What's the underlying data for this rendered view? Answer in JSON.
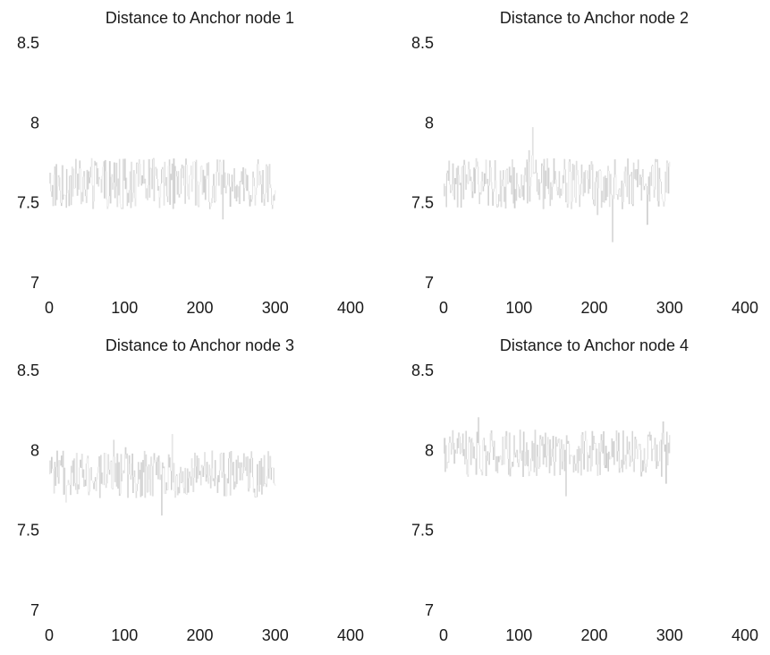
{
  "chart_data": [
    {
      "type": "line",
      "title": "Distance to Anchor node 1",
      "xlabel": "",
      "ylabel": "",
      "xlim": [
        0,
        400
      ],
      "ylim": [
        7,
        8.5
      ],
      "xticks": [
        "0",
        "100",
        "200",
        "300",
        "400"
      ],
      "yticks": [
        "7",
        "7.5",
        "8",
        "8.5"
      ],
      "grid": false,
      "line_color": "#c8c8c8",
      "series": [
        {
          "x_start": 1,
          "x_step": 1,
          "y_center": 7.62,
          "y_spread": 0.16,
          "count": 300
        }
      ]
    },
    {
      "type": "line",
      "title": "Distance to Anchor node 2",
      "xlabel": "",
      "ylabel": "",
      "xlim": [
        0,
        400
      ],
      "ylim": [
        7,
        8.5
      ],
      "xticks": [
        "0",
        "100",
        "200",
        "300",
        "400"
      ],
      "yticks": [
        "7",
        "7.5",
        "8",
        "8.5"
      ],
      "grid": false,
      "line_color": "#c8c8c8",
      "series": [
        {
          "x_start": 1,
          "x_step": 1,
          "y_center": 7.62,
          "y_spread": 0.16,
          "count": 300
        }
      ]
    },
    {
      "type": "line",
      "title": "Distance to Anchor node 3",
      "xlabel": "",
      "ylabel": "",
      "xlim": [
        0,
        400
      ],
      "ylim": [
        7,
        8.5
      ],
      "xticks": [
        "0",
        "100",
        "200",
        "300",
        "400"
      ],
      "yticks": [
        "7",
        "7.5",
        "8",
        "8.5"
      ],
      "grid": false,
      "line_color": "#c8c8c8",
      "series": [
        {
          "x_start": 1,
          "x_step": 1,
          "y_center": 7.85,
          "y_spread": 0.15,
          "count": 300
        }
      ]
    },
    {
      "type": "line",
      "title": "Distance to Anchor node 4",
      "xlabel": "",
      "ylabel": "",
      "xlim": [
        0,
        400
      ],
      "ylim": [
        7,
        8.5
      ],
      "xticks": [
        "0",
        "100",
        "200",
        "300",
        "400"
      ],
      "yticks": [
        "7",
        "7.5",
        "8",
        "8.5"
      ],
      "grid": false,
      "line_color": "#c8c8c8",
      "series": [
        {
          "x_start": 1,
          "x_step": 1,
          "y_center": 7.98,
          "y_spread": 0.15,
          "count": 300
        }
      ]
    }
  ]
}
